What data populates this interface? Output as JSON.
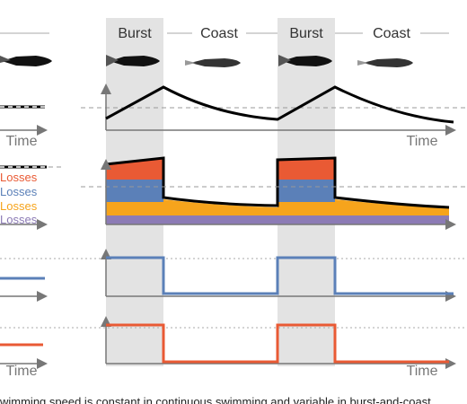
{
  "phases": [
    "Burst",
    "Coast",
    "Burst",
    "Coast"
  ],
  "time_labels": [
    "Time",
    "Time",
    "Time",
    "Time"
  ],
  "losses": [
    "Losses",
    "Losses",
    "Losses",
    "Losses"
  ],
  "caption": "wimming speed is constant in continuous swimming and variable in burst-and-coast"
}
